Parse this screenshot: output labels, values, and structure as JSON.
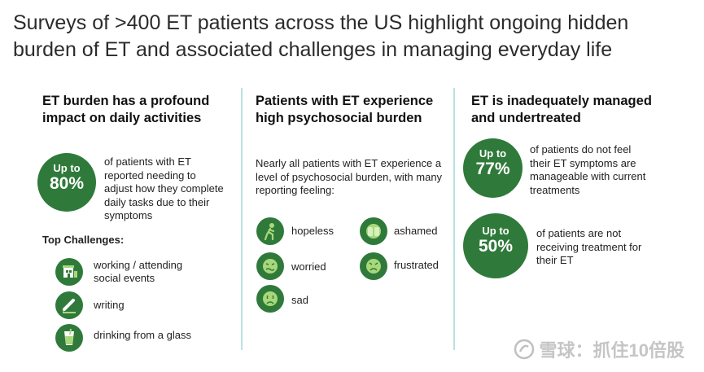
{
  "title": {
    "line1": "Surveys of >400 ET patients across the US highlight ongoing hidden",
    "line2": "burden of ET and associated challenges in managing everyday life"
  },
  "col1": {
    "heading1": "ET burden has a profound",
    "heading2": "impact on daily activities",
    "badge_pre": "Up to",
    "badge_num": "80%",
    "stat_text": "of patients with ET reported needing to adjust how they complete daily tasks due to their symptoms",
    "challenges_heading": "Top Challenges:",
    "challenges": [
      {
        "label": "working / attending social events",
        "icon": "building-icon"
      },
      {
        "label": "writing",
        "icon": "pencil-icon"
      },
      {
        "label": "drinking from a glass",
        "icon": "glass-icon"
      }
    ]
  },
  "col2": {
    "heading1": "Patients with ET experience",
    "heading2": "high psychosocial burden",
    "intro": "Nearly all patients with ET experience a level of psychosocial burden, with many reporting feeling:",
    "feelings": [
      {
        "label": "hopeless",
        "icon": "hopeless-icon"
      },
      {
        "label": "ashamed",
        "icon": "ashamed-icon"
      },
      {
        "label": "worried",
        "icon": "worried-icon"
      },
      {
        "label": "frustrated",
        "icon": "frustrated-icon"
      },
      {
        "label": "sad",
        "icon": "sad-icon"
      }
    ]
  },
  "col3": {
    "heading1": "ET is inadequately managed",
    "heading2": "and undertreated",
    "stat1_pre": "Up to",
    "stat1_num": "77%",
    "stat1_text": "of patients do not feel their ET symptoms are manageable with current treatments",
    "stat2_pre": "Up to",
    "stat2_num": "50%",
    "stat2_text": "of patients are not receiving treatment for their ET"
  },
  "watermark": "雪球：抓住10倍股",
  "colors": {
    "badge_green": "#2f7a3a",
    "divider_teal": "#b7e3e1",
    "icon_light_green": "#a8d87a"
  }
}
